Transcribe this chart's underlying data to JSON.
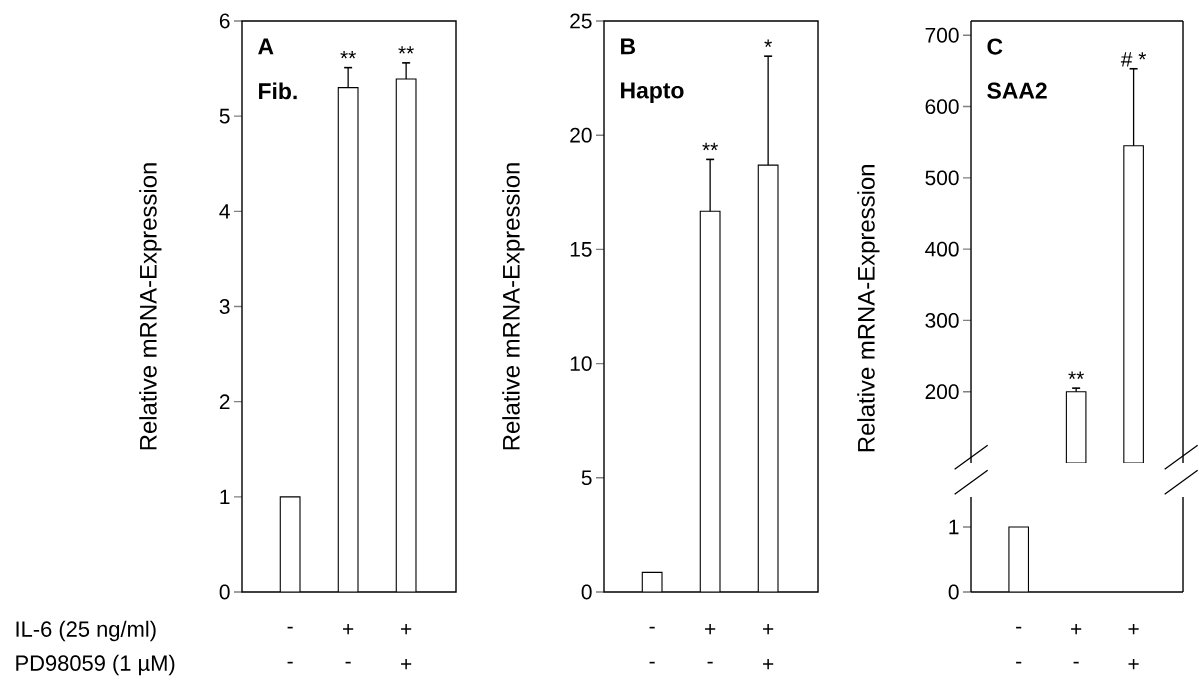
{
  "chart_data": [
    {
      "type": "bar",
      "title": "A",
      "subtitle": "Fib.",
      "ylabel": "Relative mRNA-Expression",
      "categories": [
        "-",
        "+",
        "+"
      ],
      "values": [
        1,
        5.3,
        5.39
      ],
      "errors": [
        null,
        0.21,
        0.17
      ],
      "color": "#ffffff",
      "ylim": [
        0,
        6
      ],
      "yticks": [
        0,
        1,
        2,
        3,
        4,
        5,
        6
      ],
      "annotations": [
        {
          "text": "**",
          "y": 5.51
        },
        {
          "text": "**",
          "y": 5.56
        },
        "IL-6 (25 ng/ml)",
        "PD98059 (1 µM)",
        "-",
        "-",
        "+"
      ]
    },
    {
      "type": "bar",
      "title": "B",
      "subtitle": "Hapto",
      "ylabel": "Relative mRNA-Expression",
      "categories": [
        "-",
        "+",
        "+"
      ],
      "values": [
        0.86,
        16.67,
        18.69
      ],
      "errors": [
        null,
        2.27,
        4.77
      ],
      "color": "#ffffff",
      "ylim": [
        0,
        25
      ],
      "yticks": [
        0,
        5,
        10,
        15,
        20,
        25
      ],
      "annotations": [
        {
          "text": "**",
          "y": 18.94
        },
        {
          "text": "*",
          "y": 23.46
        },
        "-",
        "-",
        "+"
      ]
    },
    {
      "type": "bar",
      "title": "C",
      "subtitle": "SAA2",
      "ylabel": "Relative mRNA-Expression",
      "categories": [
        null,
        null,
        null
      ],
      "values": [
        null,
        200,
        545
      ],
      "errors": [
        null,
        5,
        108
      ],
      "color": "#ffffff",
      "ylim": [
        100,
        720
      ],
      "yticks": [
        200,
        300,
        400,
        500,
        600,
        700
      ],
      "tick_labels": "y",
      "annotations": [
        {
          "text": "**",
          "y": 205
        },
        {
          "text": "# *",
          "y": 653
        }
      ]
    },
    {
      "type": "bar",
      "categories": [
        "-",
        "+",
        "+"
      ],
      "values": [
        1,
        null,
        null
      ],
      "color": "#ffffff",
      "ylim": [
        0,
        1.46
      ],
      "yticks": [
        0,
        1
      ],
      "annotations": [
        "-",
        "-",
        "+"
      ]
    }
  ]
}
